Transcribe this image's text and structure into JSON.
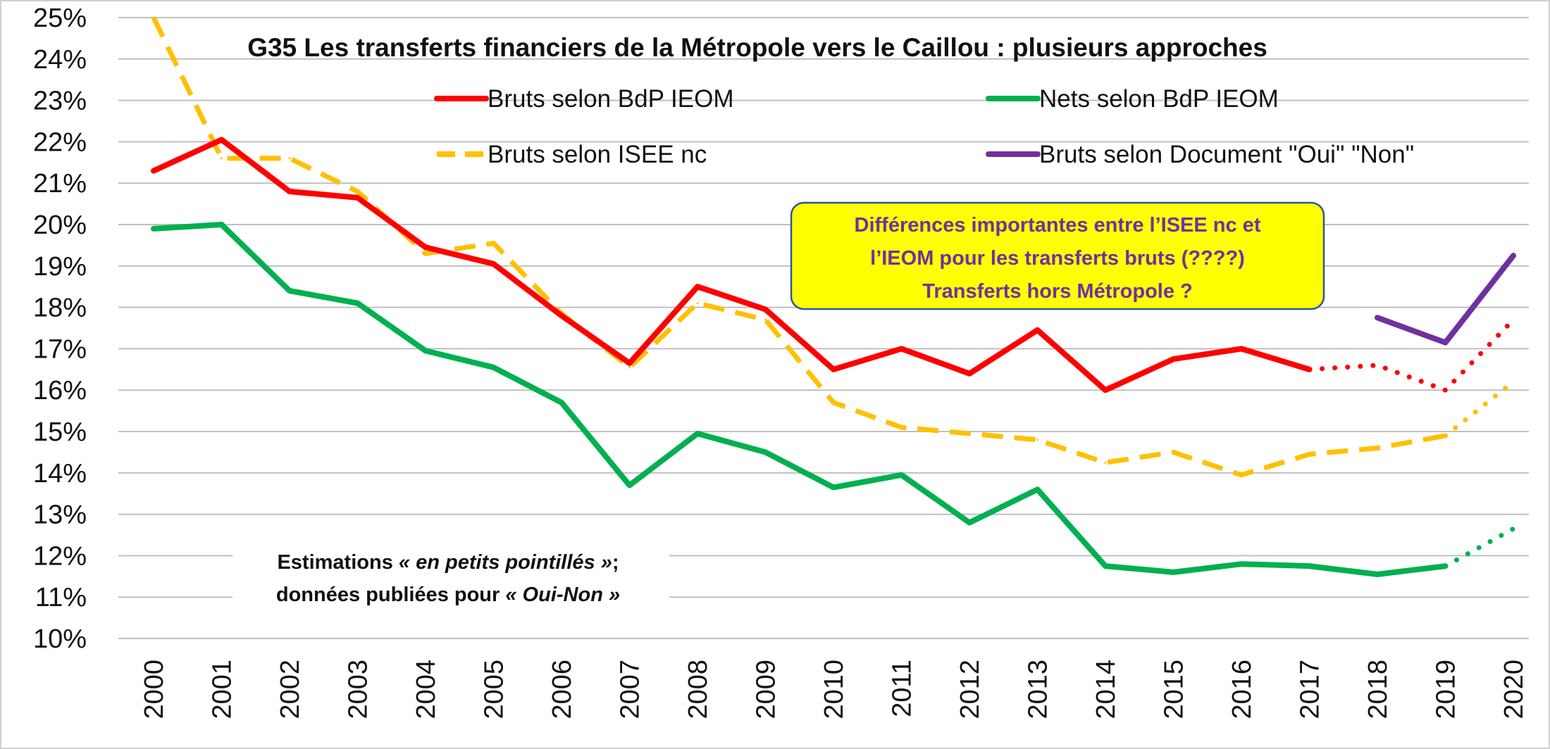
{
  "chart_data": {
    "type": "line",
    "title": "G35   Les transferts financiers de la Métropole vers le Caillou : plusieurs approches",
    "xlabel": "",
    "ylabel": "",
    "ylim": [
      10,
      25
    ],
    "y_ticks": [
      "10%",
      "11%",
      "12%",
      "13%",
      "14%",
      "15%",
      "16%",
      "17%",
      "18%",
      "19%",
      "20%",
      "21%",
      "22%",
      "23%",
      "24%",
      "25%"
    ],
    "grid": true,
    "legend_position": "top",
    "categories": [
      "2000",
      "2001",
      "2002",
      "2003",
      "2004",
      "2005",
      "2006",
      "2007",
      "2008",
      "2009",
      "2010",
      "2011",
      "2012",
      "2013",
      "2014",
      "2015",
      "2016",
      "2017",
      "2018",
      "2019",
      "2020"
    ],
    "series": [
      {
        "name": "Bruts selon BdP IEOM",
        "color": "#ff0000",
        "style": "solid",
        "values": [
          21.3,
          22.05,
          20.8,
          20.65,
          19.45,
          19.05,
          17.8,
          16.65,
          18.5,
          17.95,
          16.5,
          17.0,
          16.4,
          17.45,
          16.0,
          16.75,
          17.0,
          16.5,
          null,
          null,
          null
        ],
        "estimate_values": [
          null,
          null,
          null,
          null,
          null,
          null,
          null,
          null,
          null,
          null,
          null,
          null,
          null,
          null,
          null,
          null,
          null,
          16.5,
          16.6,
          16.0,
          17.7
        ]
      },
      {
        "name": "Nets selon BdP IEOM",
        "color": "#00b050",
        "style": "solid",
        "values": [
          19.9,
          20.0,
          18.4,
          18.1,
          16.95,
          16.55,
          15.7,
          13.7,
          14.95,
          14.5,
          13.65,
          13.95,
          12.8,
          13.6,
          11.75,
          11.6,
          11.8,
          11.75,
          11.55,
          11.75,
          null
        ],
        "estimate_values": [
          null,
          null,
          null,
          null,
          null,
          null,
          null,
          null,
          null,
          null,
          null,
          null,
          null,
          null,
          null,
          null,
          null,
          null,
          null,
          11.75,
          12.65
        ]
      },
      {
        "name": "Bruts selon ISEE nc",
        "color": "#ffc000",
        "style": "dashed",
        "values": [
          25.0,
          21.6,
          21.6,
          20.8,
          19.3,
          19.55,
          17.85,
          16.55,
          18.1,
          17.7,
          15.7,
          15.1,
          14.95,
          14.8,
          14.25,
          14.5,
          13.95,
          14.45,
          14.6,
          14.9,
          null
        ],
        "estimate_values": [
          null,
          null,
          null,
          null,
          null,
          null,
          null,
          null,
          null,
          null,
          null,
          null,
          null,
          null,
          null,
          null,
          null,
          null,
          null,
          14.9,
          16.2
        ]
      },
      {
        "name": "Bruts selon Document \"Oui\" \"Non\"",
        "color": "#7030a0",
        "style": "solid",
        "values": [
          null,
          null,
          null,
          null,
          null,
          null,
          null,
          null,
          null,
          null,
          null,
          null,
          null,
          null,
          null,
          null,
          null,
          null,
          17.75,
          17.15,
          19.25
        ],
        "estimate_values": []
      }
    ],
    "annotations": {
      "callout_lines": [
        "Différences importantes entre l’ISEE nc et",
        "l’IEOM pour les transferts bruts (????)",
        "Transferts hors Métropole ?"
      ],
      "callout_fill": "#ffff00",
      "callout_border": "#2f5597",
      "note_line1_pre": "Estimations ",
      "note_line1_em": "« en petits pointillés »",
      "note_line1_post": ";",
      "note_line2_pre": "données publiées pour ",
      "note_line2_em": "« Oui-Non »"
    }
  }
}
